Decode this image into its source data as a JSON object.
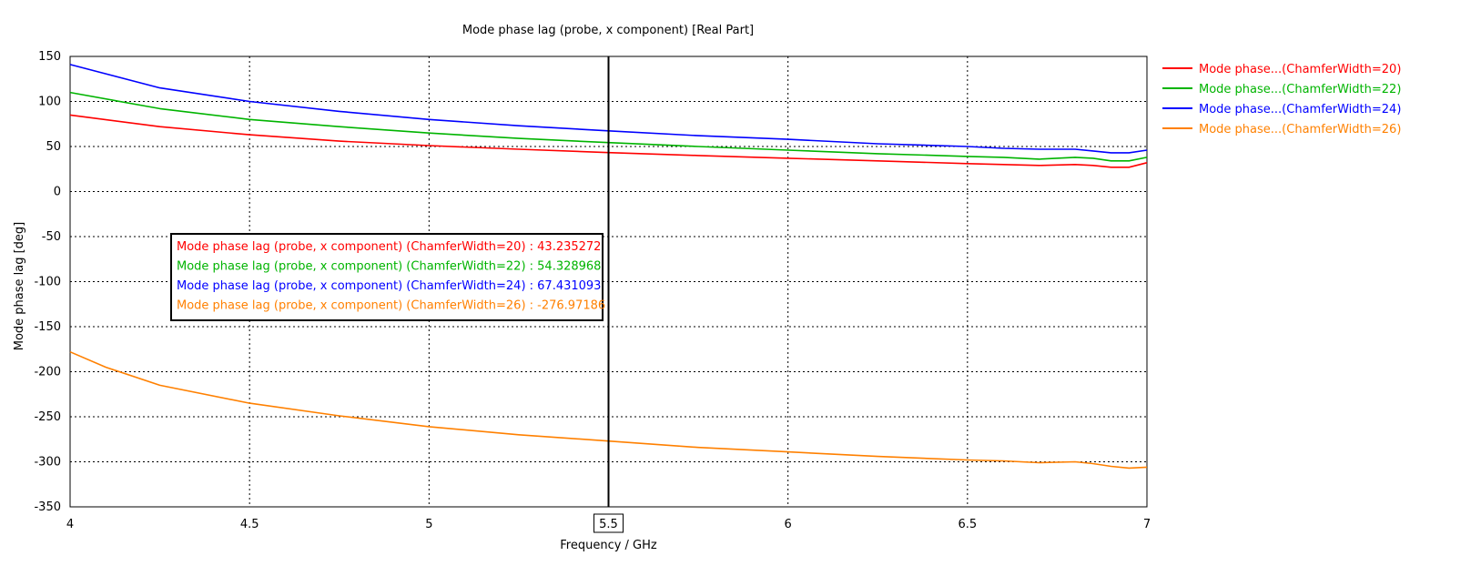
{
  "chart_data": {
    "type": "line",
    "title": "Mode phase lag (probe, x component) [Real Part]",
    "xlabel": "Frequency / GHz",
    "ylabel": "Mode phase lag [deg]",
    "xlim": [
      4,
      7
    ],
    "ylim": [
      -350,
      150
    ],
    "xticks": [
      4,
      4.5,
      5,
      5.5,
      6,
      6.5,
      7
    ],
    "xtick_labels": [
      "4",
      "4.5",
      "5",
      "5.5",
      "6",
      "6.5",
      "7"
    ],
    "yticks": [
      150,
      100,
      50,
      0,
      -50,
      -100,
      -150,
      -200,
      -250,
      -300,
      -350
    ],
    "ytick_labels": [
      "150",
      "100",
      "50",
      "0",
      "-50",
      "-100",
      "-150",
      "-200",
      "-250",
      "-300",
      "-350"
    ],
    "grid": true,
    "legend_position": "right",
    "marker": {
      "x": 5.5,
      "label": "5.5"
    },
    "series": [
      {
        "name": "Mode phase...(ChamferWidth=20)",
        "readout": "Mode phase lag (probe, x component) (ChamferWidth=20) : 43.235272",
        "color": "#ff0000",
        "x": [
          4.0,
          4.25,
          4.5,
          4.75,
          5.0,
          5.25,
          5.5,
          5.75,
          6.0,
          6.25,
          6.5,
          6.6,
          6.7,
          6.8,
          6.85,
          6.9,
          6.95,
          7.0
        ],
        "y": [
          85,
          72,
          63,
          56,
          51,
          47,
          43.2,
          40,
          37,
          34,
          31,
          30,
          29,
          30,
          29,
          27,
          27,
          32
        ]
      },
      {
        "name": "Mode phase...(ChamferWidth=22)",
        "readout": "Mode phase lag (probe, x component) (ChamferWidth=22) : 54.328968",
        "color": "#00b400",
        "x": [
          4.0,
          4.25,
          4.5,
          4.75,
          5.0,
          5.25,
          5.5,
          5.75,
          6.0,
          6.25,
          6.5,
          6.6,
          6.7,
          6.8,
          6.85,
          6.9,
          6.95,
          7.0
        ],
        "y": [
          110,
          92,
          80,
          72,
          65,
          59,
          54.3,
          50,
          46,
          42,
          39,
          38,
          36,
          38,
          37,
          34,
          34,
          38
        ]
      },
      {
        "name": "Mode phase...(ChamferWidth=24)",
        "readout": "Mode phase lag (probe, x component) (ChamferWidth=24) : 67.431093",
        "color": "#0000ff",
        "x": [
          4.0,
          4.25,
          4.5,
          4.75,
          5.0,
          5.25,
          5.5,
          5.75,
          6.0,
          6.25,
          6.5,
          6.6,
          6.7,
          6.8,
          6.85,
          6.9,
          6.95,
          7.0
        ],
        "y": [
          141,
          115,
          100,
          89,
          80,
          73,
          67.4,
          62,
          58,
          53,
          50,
          48,
          47,
          47,
          45,
          43,
          43,
          46
        ]
      },
      {
        "name": "Mode phase...(ChamferWidth=26)",
        "readout": "Mode phase lag (probe, x component) (ChamferWidth=26) : -276.97186",
        "color": "#ff8000",
        "x": [
          4.0,
          4.1,
          4.25,
          4.5,
          4.75,
          5.0,
          5.25,
          5.5,
          5.75,
          6.0,
          6.25,
          6.5,
          6.6,
          6.7,
          6.8,
          6.85,
          6.9,
          6.95,
          7.0
        ],
        "y": [
          -178,
          -195,
          -215,
          -235,
          -249,
          -261,
          -270,
          -277,
          -284,
          -289,
          -294,
          -298,
          -299,
          -301,
          -300,
          -302,
          -305,
          -307,
          -306
        ]
      }
    ]
  }
}
